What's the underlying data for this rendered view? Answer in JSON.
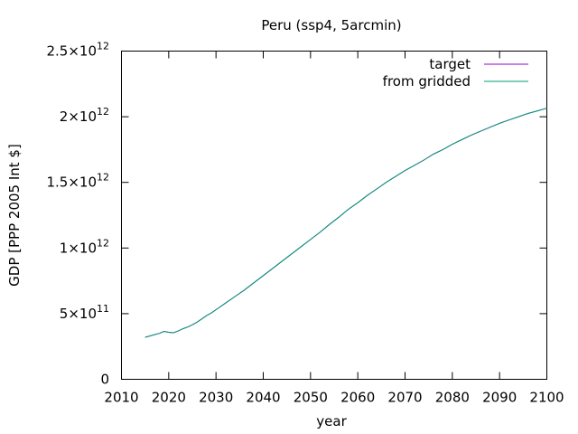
{
  "chart_data": {
    "type": "line",
    "title": "Peru (ssp4, 5arcmin)",
    "xlabel": "year",
    "ylabel": "GDP [PPP 2005 Int $]",
    "xlim": [
      2010,
      2100
    ],
    "ylim": [
      0,
      2500000000000
    ],
    "grid": false,
    "legend_position": "top-right",
    "x_ticks": [
      {
        "value": 2010,
        "label": "2010"
      },
      {
        "value": 2020,
        "label": "2020"
      },
      {
        "value": 2030,
        "label": "2030"
      },
      {
        "value": 2040,
        "label": "2040"
      },
      {
        "value": 2050,
        "label": "2050"
      },
      {
        "value": 2060,
        "label": "2060"
      },
      {
        "value": 2070,
        "label": "2070"
      },
      {
        "value": 2080,
        "label": "2080"
      },
      {
        "value": 2090,
        "label": "2090"
      },
      {
        "value": 2100,
        "label": "2100"
      }
    ],
    "y_ticks": [
      {
        "value": 0,
        "mantissa": "0",
        "exponent": ""
      },
      {
        "value": 500000000000,
        "mantissa": "5×10",
        "exponent": "11"
      },
      {
        "value": 1000000000000,
        "mantissa": "1×10",
        "exponent": "12"
      },
      {
        "value": 1500000000000,
        "mantissa": "1.5×10",
        "exponent": "12"
      },
      {
        "value": 2000000000000,
        "mantissa": "2×10",
        "exponent": "12"
      },
      {
        "value": 2500000000000,
        "mantissa": "2.5×10",
        "exponent": "12"
      }
    ],
    "x": [
      2015,
      2016,
      2017,
      2018,
      2019,
      2020,
      2021,
      2022,
      2023,
      2024,
      2025,
      2026,
      2027,
      2028,
      2029,
      2030,
      2032,
      2034,
      2036,
      2038,
      2040,
      2042,
      2044,
      2046,
      2048,
      2050,
      2052,
      2054,
      2056,
      2058,
      2060,
      2062,
      2064,
      2066,
      2068,
      2070,
      2072,
      2074,
      2076,
      2078,
      2080,
      2082,
      2084,
      2086,
      2088,
      2090,
      2092,
      2094,
      2096,
      2098,
      2100
    ],
    "series": [
      {
        "name": "target",
        "color": "#9400d3",
        "values": [
          320000000000,
          330000000000,
          340000000000,
          350000000000,
          365000000000,
          358000000000,
          355000000000,
          368000000000,
          385000000000,
          398000000000,
          415000000000,
          435000000000,
          460000000000,
          485000000000,
          505000000000,
          530000000000,
          580000000000,
          630000000000,
          680000000000,
          735000000000,
          790000000000,
          845000000000,
          900000000000,
          955000000000,
          1010000000000,
          1065000000000,
          1120000000000,
          1180000000000,
          1235000000000,
          1295000000000,
          1345000000000,
          1400000000000,
          1450000000000,
          1500000000000,
          1545000000000,
          1590000000000,
          1630000000000,
          1670000000000,
          1715000000000,
          1750000000000,
          1790000000000,
          1825000000000,
          1860000000000,
          1890000000000,
          1920000000000,
          1950000000000,
          1975000000000,
          2000000000000,
          2025000000000,
          2045000000000,
          2065000000000
        ]
      },
      {
        "name": "from gridded",
        "color": "#009e73",
        "values": [
          320000000000,
          330000000000,
          340000000000,
          350000000000,
          365000000000,
          358000000000,
          355000000000,
          368000000000,
          385000000000,
          398000000000,
          415000000000,
          435000000000,
          460000000000,
          485000000000,
          505000000000,
          530000000000,
          580000000000,
          630000000000,
          680000000000,
          735000000000,
          790000000000,
          845000000000,
          900000000000,
          955000000000,
          1010000000000,
          1065000000000,
          1120000000000,
          1180000000000,
          1235000000000,
          1295000000000,
          1345000000000,
          1400000000000,
          1450000000000,
          1500000000000,
          1545000000000,
          1590000000000,
          1630000000000,
          1670000000000,
          1715000000000,
          1750000000000,
          1790000000000,
          1825000000000,
          1860000000000,
          1890000000000,
          1920000000000,
          1950000000000,
          1975000000000,
          2000000000000,
          2025000000000,
          2045000000000,
          2065000000000
        ]
      }
    ]
  }
}
